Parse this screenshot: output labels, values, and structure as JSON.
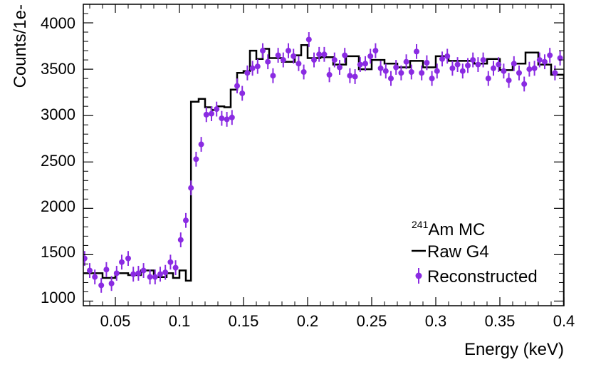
{
  "chart_data": {
    "type": "scatter",
    "xlabel": "Energy (keV)",
    "ylabel": "Counts/1e-",
    "xlim": [
      0.025,
      0.4
    ],
    "ylim": [
      950,
      4200
    ],
    "x_ticks": [
      "0.05",
      "0.1",
      "0.15",
      "0.2",
      "0.25",
      "0.3",
      "0.35",
      "0.4"
    ],
    "x_tick_values": [
      0.05,
      0.1,
      0.15,
      0.2,
      0.25,
      0.3,
      0.35,
      0.4
    ],
    "y_ticks": [
      "1000",
      "1500",
      "2000",
      "2500",
      "3000",
      "3500",
      "4000"
    ],
    "y_tick_values": [
      1000,
      1500,
      2000,
      2500,
      3000,
      3500,
      4000
    ],
    "grid": false,
    "legend_position": "bottom-right",
    "legend": {
      "title_sup": "241",
      "title": "Am MC",
      "line_label": "Raw G4",
      "points_label": "Reconstructed"
    },
    "colors": {
      "histogram": "#000000",
      "points": "#8a2be2"
    },
    "series": [
      {
        "name": "Raw G4",
        "style": "step",
        "bin_edges": [
          0.025,
          0.04,
          0.05,
          0.06,
          0.07,
          0.08,
          0.09,
          0.095,
          0.1,
          0.105,
          0.109,
          0.115,
          0.12,
          0.125,
          0.13,
          0.135,
          0.14,
          0.145,
          0.15,
          0.155,
          0.16,
          0.165,
          0.17,
          0.18,
          0.19,
          0.195,
          0.2,
          0.21,
          0.22,
          0.23,
          0.24,
          0.25,
          0.26,
          0.27,
          0.28,
          0.29,
          0.3,
          0.31,
          0.32,
          0.33,
          0.34,
          0.35,
          0.36,
          0.37,
          0.38,
          0.39,
          0.4
        ],
        "values": [
          1300,
          1250,
          1300,
          1280,
          1330,
          1260,
          1300,
          1250,
          1330,
          1220,
          3150,
          3180,
          3090,
          3060,
          3100,
          3090,
          3280,
          3460,
          3480,
          3700,
          3610,
          3720,
          3620,
          3580,
          3650,
          3760,
          3620,
          3630,
          3550,
          3640,
          3500,
          3600,
          3560,
          3520,
          3590,
          3520,
          3640,
          3590,
          3590,
          3560,
          3610,
          3490,
          3560,
          3680,
          3550,
          3440
        ]
      },
      {
        "name": "Reconstructed",
        "style": "points-with-errorbars",
        "x": [
          0.026,
          0.03,
          0.034,
          0.039,
          0.043,
          0.047,
          0.051,
          0.055,
          0.06,
          0.064,
          0.068,
          0.072,
          0.077,
          0.081,
          0.085,
          0.089,
          0.093,
          0.097,
          0.101,
          0.105,
          0.109,
          0.113,
          0.117,
          0.121,
          0.125,
          0.129,
          0.133,
          0.137,
          0.141,
          0.145,
          0.149,
          0.153,
          0.157,
          0.161,
          0.165,
          0.169,
          0.173,
          0.177,
          0.181,
          0.185,
          0.189,
          0.193,
          0.197,
          0.201,
          0.205,
          0.209,
          0.213,
          0.217,
          0.221,
          0.225,
          0.229,
          0.233,
          0.237,
          0.241,
          0.245,
          0.249,
          0.253,
          0.257,
          0.261,
          0.265,
          0.269,
          0.273,
          0.277,
          0.281,
          0.285,
          0.289,
          0.293,
          0.297,
          0.301,
          0.305,
          0.309,
          0.313,
          0.317,
          0.321,
          0.325,
          0.329,
          0.333,
          0.337,
          0.341,
          0.345,
          0.349,
          0.353,
          0.357,
          0.361,
          0.365,
          0.369,
          0.373,
          0.377,
          0.381,
          0.385,
          0.389,
          0.393,
          0.397
        ],
        "y": [
          1460,
          1330,
          1260,
          1170,
          1340,
          1190,
          1300,
          1420,
          1460,
          1290,
          1300,
          1330,
          1260,
          1260,
          1290,
          1310,
          1420,
          1360,
          1660,
          1870,
          2220,
          2530,
          2690,
          3010,
          3020,
          3070,
          2970,
          2960,
          2980,
          3320,
          3240,
          3460,
          3510,
          3530,
          3700,
          3580,
          3430,
          3650,
          3600,
          3700,
          3640,
          3560,
          3470,
          3820,
          3600,
          3660,
          3660,
          3440,
          3600,
          3520,
          3650,
          3430,
          3420,
          3550,
          3560,
          3640,
          3700,
          3510,
          3480,
          3400,
          3520,
          3460,
          3580,
          3470,
          3690,
          3460,
          3570,
          3400,
          3480,
          3610,
          3640,
          3510,
          3550,
          3480,
          3540,
          3600,
          3550,
          3600,
          3400,
          3510,
          3550,
          3480,
          3380,
          3560,
          3460,
          3340,
          3500,
          3510,
          3600,
          3580,
          3650,
          3460,
          3620
        ],
        "error": 80
      }
    ]
  }
}
